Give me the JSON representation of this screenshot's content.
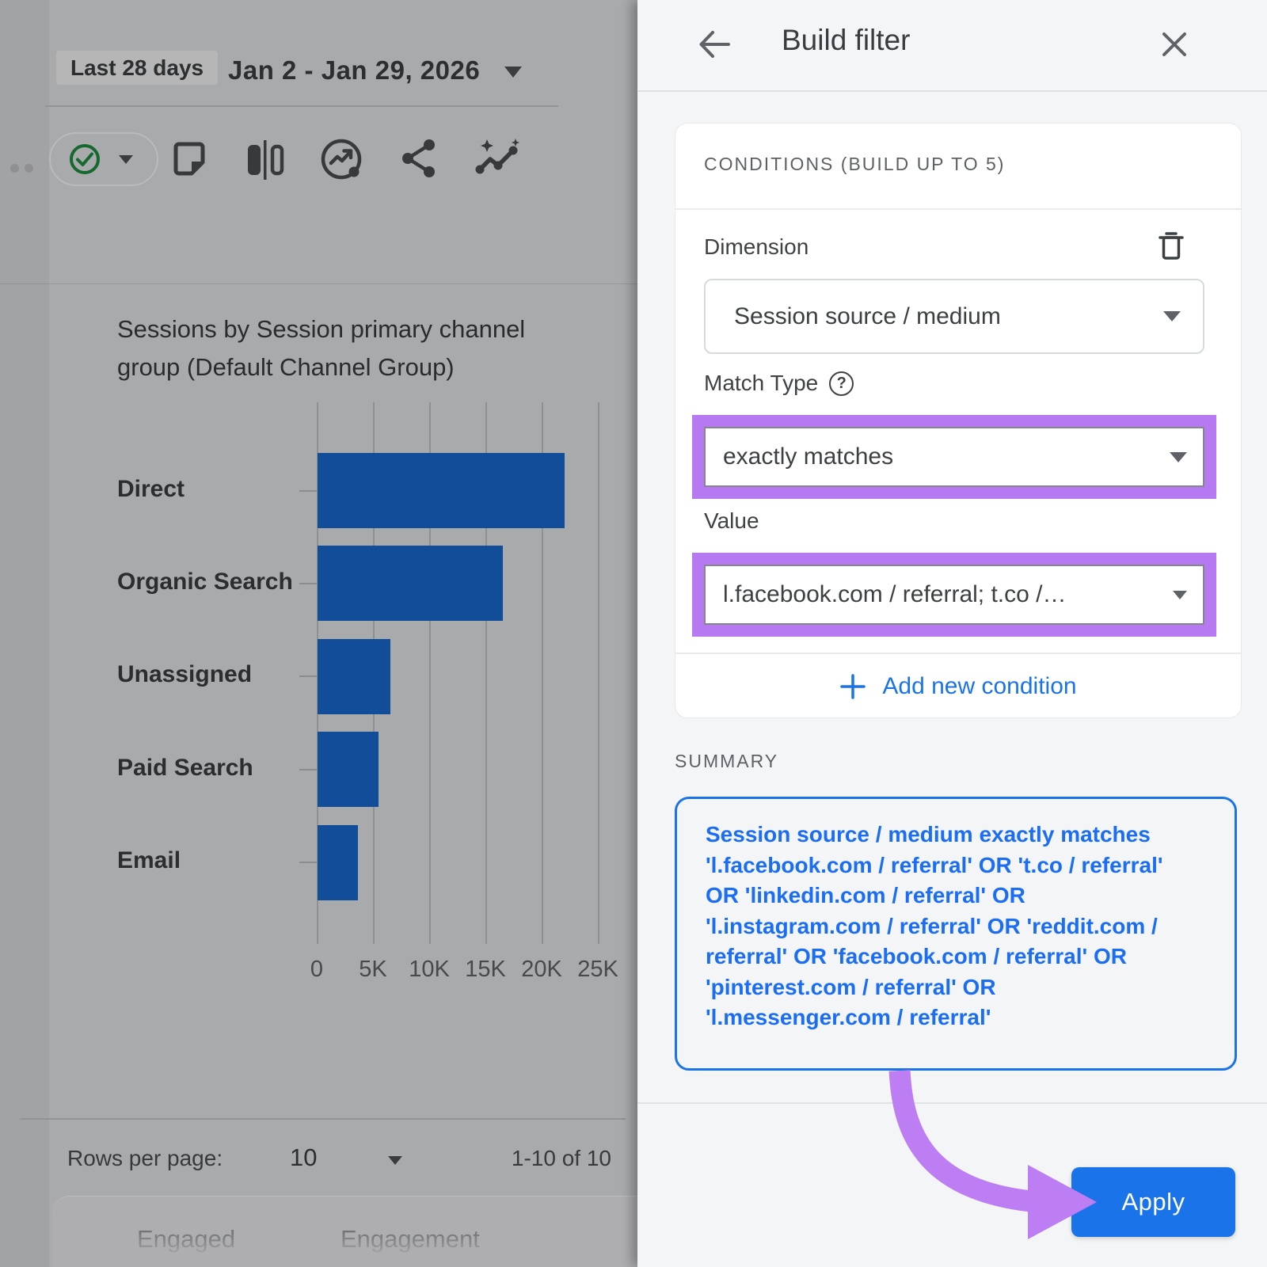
{
  "left": {
    "date_preset": "Last 28 days",
    "date_range": "Jan 2 - Jan 29, 2026",
    "toolbar_icons": [
      "approved-status-check",
      "note",
      "ab-compare",
      "trend-circle",
      "share",
      "insights"
    ],
    "rows_per_page_label": "Rows per page:",
    "rows_per_page_value": "10",
    "pagination_status": "1-10 of 10",
    "table_headers_partial": [
      "Engaged",
      "Engagement"
    ]
  },
  "chart_data": {
    "type": "bar",
    "orientation": "horizontal",
    "title": "Sessions by Session primary channel group (Default Channel Group)",
    "categories": [
      "Direct",
      "Organic Search",
      "Unassigned",
      "Paid Search",
      "Email"
    ],
    "values": [
      22000,
      16500,
      6500,
      5400,
      3600
    ],
    "x_ticks": [
      "0",
      "5K",
      "10K",
      "15K",
      "20K",
      "25K"
    ],
    "x_tick_values": [
      0,
      5000,
      10000,
      15000,
      20000,
      25000
    ],
    "xlabel": "",
    "ylabel": "",
    "xlim": [
      0,
      27500
    ],
    "grid": true,
    "legend": false
  },
  "panel": {
    "title": "Build filter",
    "conditions_header": "CONDITIONS (BUILD UP TO 5)",
    "dimension": {
      "label": "Dimension",
      "value": "Session source / medium"
    },
    "match_type": {
      "label": "Match Type",
      "value": "exactly matches"
    },
    "value_field": {
      "label": "Value",
      "value": "l.facebook.com / referral; t.co /…"
    },
    "add_condition_label": "Add new condition",
    "summary_label": "SUMMARY",
    "summary_text": "Session source / medium exactly matches 'l.facebook.com / referral' OR 't.co / referral' OR 'linkedin.com / referral' OR 'l.instagram.com / referral' OR 'reddit.com / referral' OR 'facebook.com / referral' OR 'pinterest.com / referral' OR 'l.messenger.com / referral'",
    "apply_label": "Apply"
  },
  "icons": {
    "help": "?"
  },
  "colors": {
    "accent_blue": "#1a73e8",
    "summary_text_blue": "#1b6ef3",
    "highlight_purple": "#b679f2",
    "arrow_purple": "#bc7ef2",
    "panel_bg": "#f4f5f7",
    "card_bg": "#ffffff",
    "dimmed_bg": "#a9aaac",
    "bar_blue_displayed": "#124d9a",
    "status_green": "#15682e",
    "label_gray": "#5d6166",
    "text_dark": "#3c4043"
  }
}
